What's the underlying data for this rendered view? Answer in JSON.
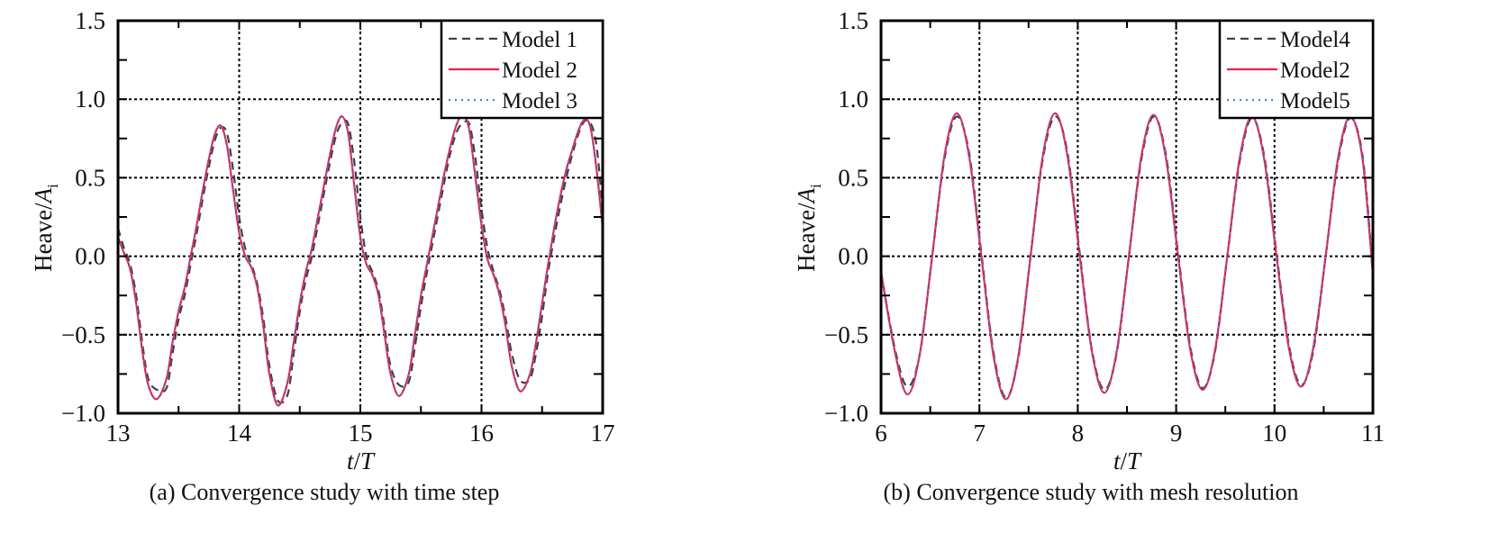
{
  "chart_data": [
    {
      "type": "line",
      "title": "",
      "caption": "(a) Convergence study with time step",
      "xlabel": {
        "italic_t": "t",
        "slash": "/",
        "italic_T": "T"
      },
      "ylabel": {
        "prefix": "Heave/",
        "italic": "A",
        "sub": "i"
      },
      "xlim": [
        13,
        17
      ],
      "ylim": [
        -1.0,
        1.5
      ],
      "xticks": [
        "13",
        "14",
        "15",
        "16",
        "17"
      ],
      "xtick_values": [
        13,
        14,
        15,
        16,
        17
      ],
      "yticks": [
        "−1.0",
        "−0.5",
        "0.0",
        "0.5",
        "1.0",
        "1.5"
      ],
      "ytick_values": [
        -1.0,
        -0.5,
        0.0,
        0.5,
        1.0,
        1.5
      ],
      "grid": true,
      "legend_position": "top-right",
      "x": [
        13.0,
        13.05,
        13.1,
        13.15,
        13.2,
        13.25,
        13.32,
        13.4,
        13.45,
        13.5,
        13.55,
        13.6,
        13.65,
        13.7,
        13.75,
        13.8,
        13.85,
        13.9,
        13.95,
        14.0,
        14.05,
        14.1,
        14.15,
        14.2,
        14.25,
        14.32,
        14.4,
        14.45,
        14.5,
        14.55,
        14.6,
        14.65,
        14.7,
        14.75,
        14.8,
        14.85,
        14.9,
        14.95,
        15.0,
        15.05,
        15.1,
        15.15,
        15.2,
        15.25,
        15.32,
        15.4,
        15.45,
        15.5,
        15.55,
        15.6,
        15.65,
        15.7,
        15.75,
        15.8,
        15.85,
        15.9,
        15.95,
        16.0,
        16.05,
        16.1,
        16.15,
        16.2,
        16.25,
        16.32,
        16.4,
        16.45,
        16.5,
        16.55,
        16.6,
        16.65,
        16.7,
        16.75,
        16.8,
        16.85,
        16.9,
        16.95,
        17.0
      ],
      "series": [
        {
          "name": "Model 1",
          "color": "#3c4248",
          "style": "dashed",
          "values": [
            0.18,
            0.05,
            -0.05,
            -0.25,
            -0.55,
            -0.78,
            -0.85,
            -0.84,
            -0.62,
            -0.4,
            -0.25,
            -0.05,
            0.15,
            0.37,
            0.57,
            0.74,
            0.82,
            0.78,
            0.55,
            0.25,
            0.05,
            -0.05,
            -0.18,
            -0.4,
            -0.7,
            -0.92,
            -0.88,
            -0.62,
            -0.35,
            -0.15,
            0.0,
            0.2,
            0.4,
            0.6,
            0.77,
            0.85,
            0.84,
            0.6,
            0.25,
            0.0,
            -0.1,
            -0.22,
            -0.45,
            -0.7,
            -0.82,
            -0.8,
            -0.58,
            -0.32,
            -0.1,
            0.1,
            0.3,
            0.5,
            0.68,
            0.8,
            0.85,
            0.84,
            0.62,
            0.3,
            0.05,
            -0.1,
            -0.22,
            -0.4,
            -0.62,
            -0.79,
            -0.78,
            -0.62,
            -0.38,
            -0.1,
            0.12,
            0.32,
            0.5,
            0.65,
            0.78,
            0.86,
            0.85,
            0.7,
            0.3
          ]
        },
        {
          "name": "Model 2",
          "color": "#e8204a",
          "style": "solid",
          "values": [
            0.12,
            0.02,
            -0.08,
            -0.3,
            -0.6,
            -0.82,
            -0.91,
            -0.78,
            -0.55,
            -0.35,
            -0.2,
            0.0,
            0.2,
            0.42,
            0.62,
            0.78,
            0.83,
            0.7,
            0.42,
            0.15,
            0.0,
            -0.07,
            -0.2,
            -0.45,
            -0.75,
            -0.95,
            -0.8,
            -0.55,
            -0.3,
            -0.1,
            0.05,
            0.25,
            0.45,
            0.65,
            0.82,
            0.89,
            0.78,
            0.45,
            0.12,
            -0.05,
            -0.12,
            -0.25,
            -0.5,
            -0.75,
            -0.89,
            -0.75,
            -0.5,
            -0.25,
            -0.05,
            0.15,
            0.35,
            0.55,
            0.72,
            0.85,
            0.9,
            0.8,
            0.5,
            0.2,
            -0.02,
            -0.12,
            -0.25,
            -0.45,
            -0.7,
            -0.86,
            -0.75,
            -0.55,
            -0.3,
            -0.05,
            0.18,
            0.38,
            0.55,
            0.68,
            0.8,
            0.87,
            0.82,
            0.55,
            0.18
          ]
        },
        {
          "name": "Model 3",
          "color": "#4a7fe0",
          "style": "dotted",
          "values": [
            0.12,
            0.02,
            -0.08,
            -0.3,
            -0.6,
            -0.82,
            -0.91,
            -0.78,
            -0.55,
            -0.35,
            -0.2,
            0.0,
            0.2,
            0.42,
            0.62,
            0.78,
            0.83,
            0.7,
            0.42,
            0.15,
            0.0,
            -0.07,
            -0.2,
            -0.45,
            -0.75,
            -0.95,
            -0.8,
            -0.55,
            -0.3,
            -0.1,
            0.05,
            0.25,
            0.45,
            0.65,
            0.82,
            0.89,
            0.78,
            0.45,
            0.12,
            -0.05,
            -0.12,
            -0.25,
            -0.5,
            -0.75,
            -0.89,
            -0.75,
            -0.5,
            -0.25,
            -0.05,
            0.15,
            0.35,
            0.55,
            0.72,
            0.85,
            0.9,
            0.8,
            0.5,
            0.2,
            -0.02,
            -0.12,
            -0.25,
            -0.45,
            -0.7,
            -0.86,
            -0.75,
            -0.55,
            -0.3,
            -0.05,
            0.18,
            0.38,
            0.55,
            0.68,
            0.8,
            0.87,
            0.82,
            0.55,
            0.18
          ]
        }
      ]
    },
    {
      "type": "line",
      "title": "",
      "caption": "(b) Convergence study with mesh resolution",
      "xlabel": {
        "italic_t": "t",
        "slash": "/",
        "italic_T": "T"
      },
      "ylabel": {
        "prefix": "Heave/",
        "italic": "A",
        "sub": "i"
      },
      "xlim": [
        6,
        11
      ],
      "ylim": [
        -1.0,
        1.5
      ],
      "xticks": [
        "6",
        "7",
        "8",
        "9",
        "10",
        "11"
      ],
      "xtick_values": [
        6,
        7,
        8,
        9,
        10,
        11
      ],
      "yticks": [
        "−1.0",
        "−0.5",
        "0.0",
        "0.5",
        "1.0",
        "1.5"
      ],
      "ytick_values": [
        -1.0,
        -0.5,
        0.0,
        0.5,
        1.0,
        1.5
      ],
      "grid": true,
      "legend_position": "top-right",
      "x": [
        6.0,
        6.145,
        6.27,
        6.395,
        6.52,
        6.645,
        6.77,
        6.895,
        7.02,
        7.145,
        7.27,
        7.395,
        7.52,
        7.645,
        7.77,
        7.895,
        8.02,
        8.145,
        8.27,
        8.395,
        8.52,
        8.645,
        8.77,
        8.895,
        9.02,
        9.145,
        9.27,
        9.395,
        9.52,
        9.645,
        9.77,
        9.895,
        10.02,
        10.145,
        10.27,
        10.395,
        10.52,
        10.645,
        10.77,
        10.895,
        11.0
      ],
      "series": [
        {
          "name": "Model4",
          "color": "#3c4248",
          "style": "dashed",
          "values": [
            -0.1,
            -0.6,
            -0.83,
            -0.62,
            0,
            0.62,
            0.89,
            0.66,
            0.02,
            -0.62,
            -0.9,
            -0.65,
            0,
            0.62,
            0.89,
            0.66,
            0.02,
            -0.6,
            -0.85,
            -0.62,
            0,
            0.61,
            0.89,
            0.65,
            0.02,
            -0.58,
            -0.84,
            -0.61,
            0,
            0.6,
            0.88,
            0.64,
            0.02,
            -0.56,
            -0.82,
            -0.6,
            0,
            0.6,
            0.88,
            0.64,
            -0.1
          ]
        },
        {
          "name": "Model2",
          "color": "#e8204a",
          "style": "solid",
          "values": [
            -0.1,
            -0.62,
            -0.88,
            -0.62,
            0,
            0.64,
            0.91,
            0.64,
            0,
            -0.64,
            -0.91,
            -0.64,
            0,
            0.64,
            0.91,
            0.64,
            0,
            -0.61,
            -0.87,
            -0.61,
            0,
            0.63,
            0.9,
            0.63,
            0,
            -0.6,
            -0.85,
            -0.6,
            0,
            0.62,
            0.89,
            0.62,
            0,
            -0.58,
            -0.83,
            -0.58,
            0,
            0.62,
            0.89,
            0.62,
            -0.12
          ]
        },
        {
          "name": "Model5",
          "color": "#4a7fe0",
          "style": "dotted",
          "values": [
            -0.1,
            -0.62,
            -0.88,
            -0.62,
            0,
            0.64,
            0.91,
            0.64,
            0,
            -0.64,
            -0.91,
            -0.64,
            0,
            0.64,
            0.91,
            0.64,
            0,
            -0.61,
            -0.87,
            -0.61,
            0,
            0.63,
            0.9,
            0.63,
            0,
            -0.6,
            -0.85,
            -0.6,
            0,
            0.62,
            0.89,
            0.62,
            0,
            -0.58,
            -0.83,
            -0.58,
            0,
            0.62,
            0.89,
            0.62,
            -0.12
          ]
        }
      ]
    }
  ]
}
